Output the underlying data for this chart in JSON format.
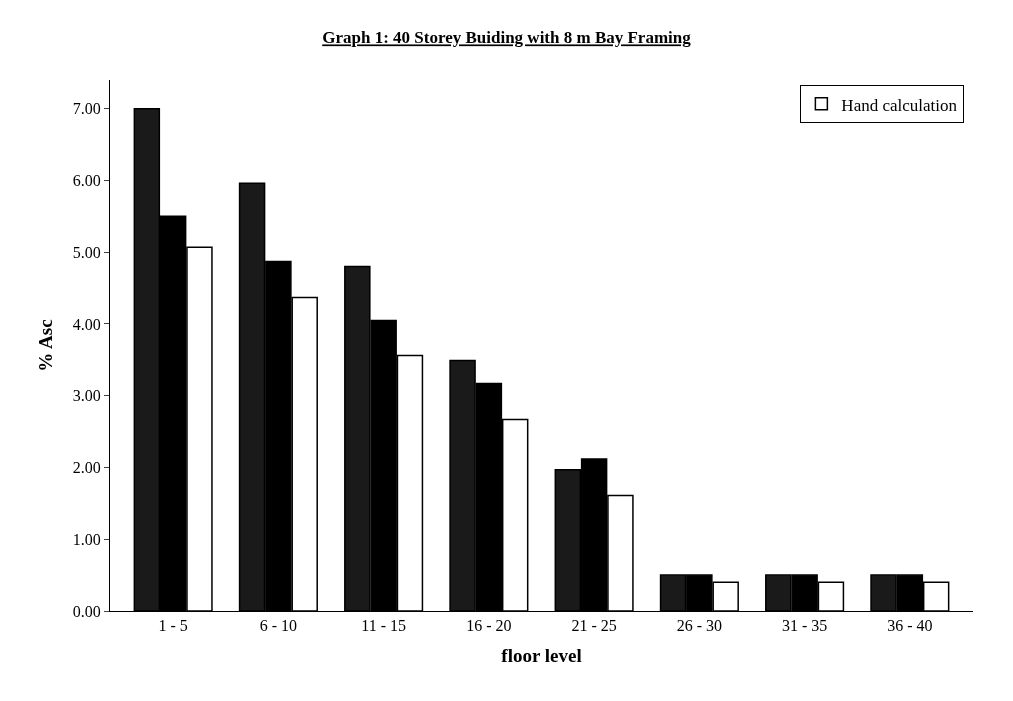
{
  "chart_data": {
    "type": "bar",
    "title": "Graph 1: 40 Storey Buiding with 8 m Bay Framing",
    "xlabel": "floor level",
    "ylabel": "% Asc",
    "categories": [
      "1 - 5",
      "6 - 10",
      "11 - 15",
      "16 - 20",
      "21 - 25",
      "26 - 30",
      "31 - 35",
      "36 - 40"
    ],
    "series": [
      {
        "color": "#1a1a1a",
        "values": [
          7.0,
          5.96,
          4.8,
          3.49,
          1.97,
          0.5,
          0.5,
          0.5
        ]
      },
      {
        "color": "#000000",
        "values": [
          5.5,
          4.87,
          4.05,
          3.17,
          2.12,
          0.5,
          0.5,
          0.5
        ]
      },
      {
        "name": "Hand calculation",
        "color": "#ffffff",
        "values": [
          5.07,
          4.37,
          3.56,
          2.67,
          1.61,
          0.4,
          0.4,
          0.4
        ]
      }
    ],
    "ylim": [
      0,
      7.4
    ],
    "yticks": [
      {
        "value": 0,
        "label": "0.00"
      },
      {
        "value": 1,
        "label": "1.00"
      },
      {
        "value": 2,
        "label": "2.00"
      },
      {
        "value": 3,
        "label": "3.00"
      },
      {
        "value": 4,
        "label": "4.00"
      },
      {
        "value": 5,
        "label": "5.00"
      },
      {
        "value": 6,
        "label": "6.00"
      },
      {
        "value": 7,
        "label": "7.00"
      }
    ],
    "grid": false,
    "legend": "top right"
  }
}
